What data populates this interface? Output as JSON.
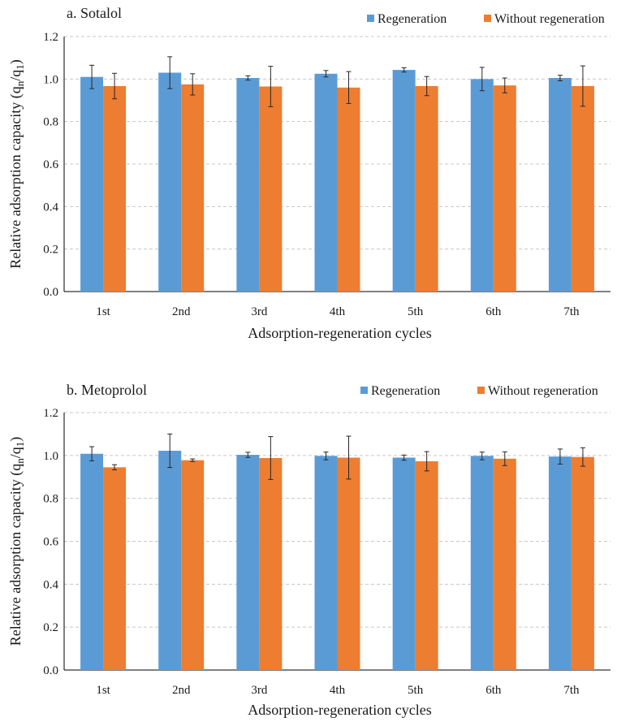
{
  "colors": {
    "regeneration": "#5b9bd5",
    "without_regeneration": "#ed7d31",
    "grid": "#c8c8c8",
    "error_bar": "#262626"
  },
  "chart_data": [
    {
      "type": "bar",
      "title": "a. Sotalol",
      "xlabel": "Adsorption-regeneration cycles",
      "ylabel": {
        "main": "Relative adsorption capacity (q",
        "sub1": "n",
        "sep": "/q",
        "sub2": "1",
        "end": ")"
      },
      "ylim": [
        0,
        1.2
      ],
      "yticks": [
        "0.0",
        "0.2",
        "0.4",
        "0.6",
        "0.8",
        "1.0",
        "1.2"
      ],
      "grid": true,
      "legend_position": "top-right",
      "categories": [
        "1st",
        "2nd",
        "3rd",
        "4th",
        "5th",
        "6th",
        "7th"
      ],
      "series": [
        {
          "name": "Regeneration",
          "values": [
            1.01,
            1.03,
            1.005,
            1.025,
            1.043,
            1.0,
            1.005
          ],
          "error": [
            0.055,
            0.075,
            0.01,
            0.015,
            0.01,
            0.055,
            0.013
          ]
        },
        {
          "name": "Without regeneration",
          "values": [
            0.967,
            0.975,
            0.965,
            0.96,
            0.967,
            0.97,
            0.967
          ],
          "error": [
            0.06,
            0.05,
            0.095,
            0.075,
            0.045,
            0.035,
            0.095
          ]
        }
      ]
    },
    {
      "type": "bar",
      "title": "b. Metoprolol",
      "xlabel": "Adsorption-regeneration cycles",
      "ylabel": {
        "main": "Relative adsorption capacity (q",
        "sub1": "n",
        "sep": "/q",
        "sub2": "1",
        "end": ")"
      },
      "ylim": [
        0,
        1.2
      ],
      "yticks": [
        "0.0",
        "0.2",
        "0.4",
        "0.6",
        "0.8",
        "1.0",
        "1.2"
      ],
      "grid": true,
      "legend_position": "top-right",
      "categories": [
        "1st",
        "2nd",
        "3rd",
        "4th",
        "5th",
        "6th",
        "7th"
      ],
      "series": [
        {
          "name": "Regeneration",
          "values": [
            1.008,
            1.022,
            1.003,
            0.998,
            0.99,
            0.998,
            0.995
          ],
          "error": [
            0.033,
            0.078,
            0.012,
            0.018,
            0.012,
            0.018,
            0.035
          ]
        },
        {
          "name": "Without regeneration",
          "values": [
            0.945,
            0.978,
            0.988,
            0.99,
            0.973,
            0.985,
            0.993
          ],
          "error": [
            0.012,
            0.006,
            0.1,
            0.1,
            0.045,
            0.032,
            0.043
          ]
        }
      ]
    }
  ]
}
